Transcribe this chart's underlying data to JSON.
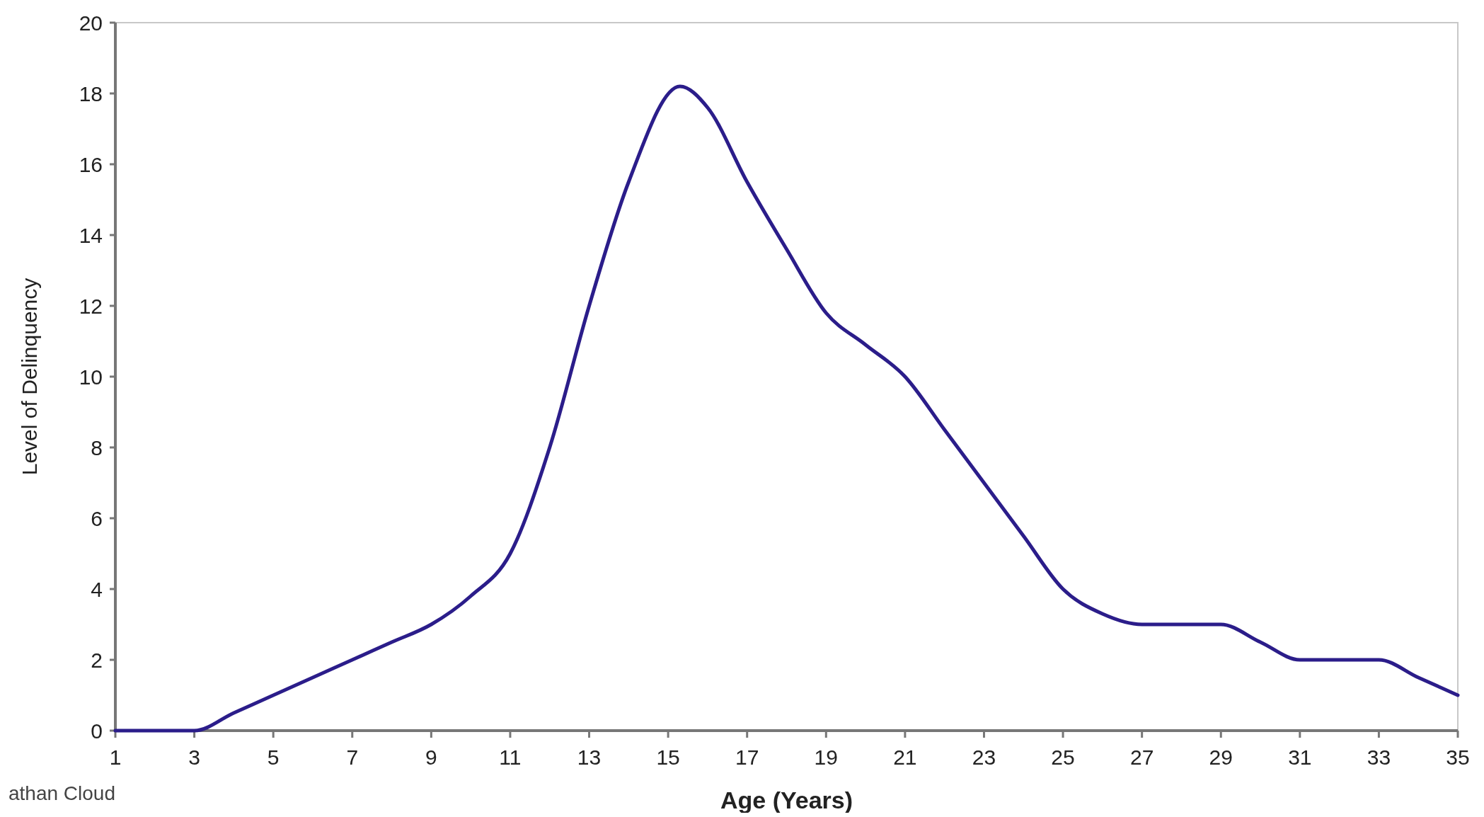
{
  "chart_data": {
    "type": "line",
    "xlabel": "Age (Years)",
    "ylabel": "Level of Delinquency",
    "annotations": [
      "athan Cloud"
    ],
    "x": [
      1,
      2,
      3,
      4,
      5,
      6,
      7,
      8,
      9,
      10,
      11,
      12,
      13,
      14,
      15.3,
      16,
      17,
      18,
      19,
      20,
      21,
      22,
      23,
      24,
      25,
      26,
      27,
      28,
      29,
      30,
      31,
      32,
      33,
      34,
      35
    ],
    "series": [
      {
        "color": "#2b1d8a",
        "values": [
          0,
          0,
          0,
          0.5,
          1,
          1.5,
          2,
          2.5,
          3,
          3.8,
          5,
          8,
          12,
          15.5,
          18.2,
          17.6,
          15.5,
          13.6,
          11.8,
          10.9,
          10,
          8.5,
          7,
          5.5,
          4,
          3.3,
          3,
          3,
          3,
          2.5,
          2,
          2,
          2,
          1.5,
          1
        ]
      }
    ],
    "xlim": [
      1,
      35
    ],
    "xticks": [
      1,
      3,
      5,
      7,
      9,
      11,
      13,
      15,
      17,
      19,
      21,
      23,
      25,
      27,
      29,
      31,
      33,
      35
    ],
    "ylim": [
      0,
      20
    ],
    "yticks": [
      0,
      2,
      4,
      6,
      8,
      10,
      12,
      14,
      16,
      18,
      20
    ],
    "grid": false,
    "marker": "none",
    "line_style": "solid"
  }
}
